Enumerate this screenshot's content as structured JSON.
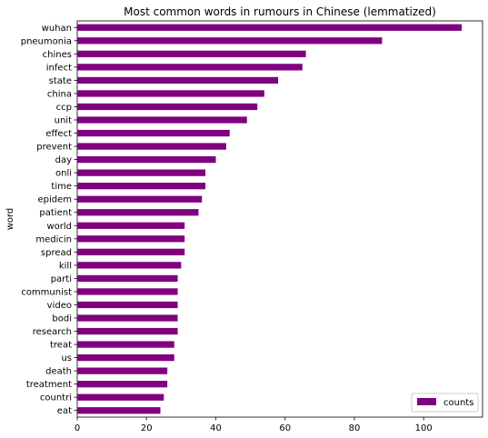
{
  "chart_data": {
    "type": "bar",
    "orientation": "horizontal",
    "title": "Most common words in rumours in Chinese (lemmatized)",
    "xlabel": "",
    "ylabel": "word",
    "xlim": [
      0,
      117
    ],
    "xticks": [
      0,
      20,
      40,
      60,
      80,
      100
    ],
    "grid": false,
    "legend_position": "bottom-right",
    "bar_color": "#800080",
    "categories": [
      "wuhan",
      "pneumonia",
      "chines",
      "infect",
      "state",
      "china",
      "ccp",
      "unit",
      "effect",
      "prevent",
      "day",
      "onli",
      "time",
      "epidem",
      "patient",
      "world",
      "medicin",
      "spread",
      "kill",
      "parti",
      "communist",
      "video",
      "bodi",
      "research",
      "treat",
      "us",
      "death",
      "treatment",
      "countri",
      "eat"
    ],
    "series": [
      {
        "name": "counts",
        "values": [
          111,
          88,
          66,
          65,
          58,
          54,
          52,
          49,
          44,
          43,
          40,
          37,
          37,
          36,
          35,
          31,
          31,
          31,
          30,
          29,
          29,
          29,
          29,
          29,
          28,
          28,
          26,
          26,
          25,
          24
        ]
      }
    ]
  }
}
